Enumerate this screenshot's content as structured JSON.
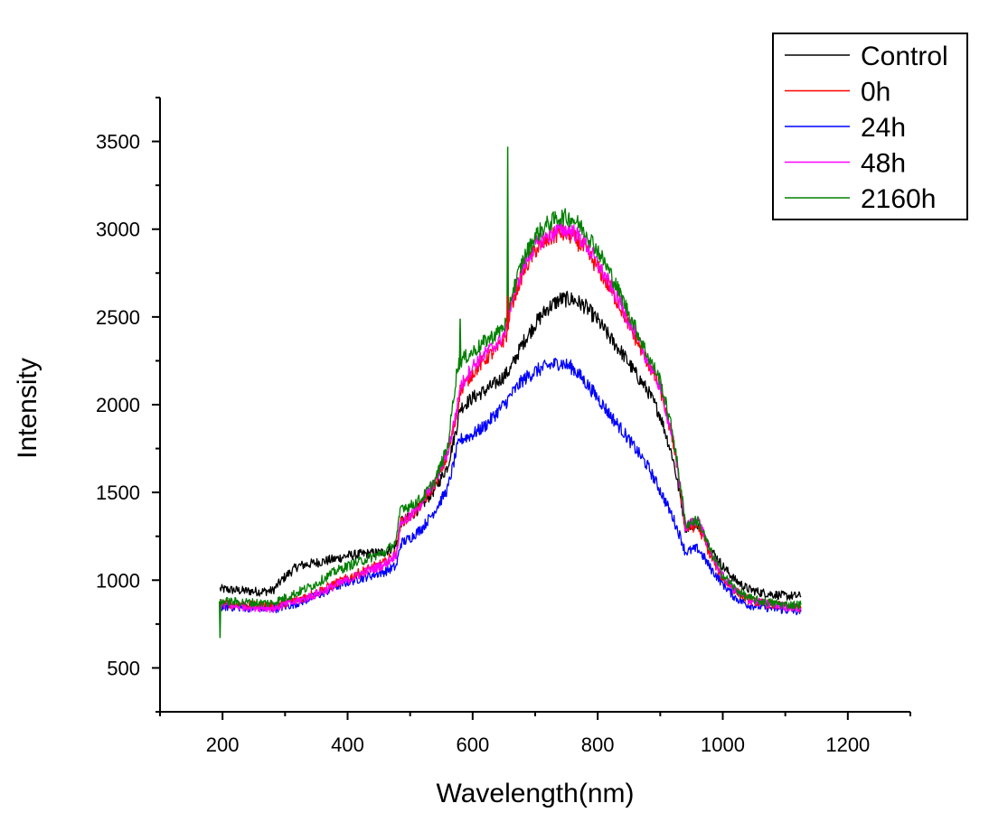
{
  "chart_data": {
    "type": "line",
    "title": "",
    "xlabel": "Wavelength(nm)",
    "ylabel": "Intensity",
    "xlim": [
      100,
      1300
    ],
    "ylim": [
      250,
      3750
    ],
    "x_ticks": [
      "200",
      "400",
      "600",
      "800",
      "1000",
      "1200"
    ],
    "y_ticks": [
      "500",
      "1000",
      "1500",
      "2000",
      "2500",
      "3000",
      "3500"
    ],
    "grid": false,
    "legend_position": "top-right",
    "x": [
      196,
      230,
      260,
      280,
      300,
      320,
      350,
      380,
      400,
      430,
      460,
      478,
      485,
      500,
      520,
      540,
      560,
      575,
      580,
      600,
      620,
      640,
      655,
      660,
      680,
      700,
      720,
      740,
      760,
      780,
      800,
      820,
      840,
      860,
      880,
      900,
      920,
      935,
      940,
      950,
      960,
      970,
      980,
      1000,
      1020,
      1040,
      1060,
      1080,
      1100,
      1125
    ],
    "series": [
      {
        "name": "Control",
        "color": "#000000",
        "values": [
          950,
          940,
          935,
          940,
          1020,
          1080,
          1100,
          1120,
          1140,
          1150,
          1160,
          1200,
          1330,
          1360,
          1430,
          1520,
          1650,
          1880,
          1980,
          2040,
          2080,
          2130,
          2180,
          2200,
          2350,
          2460,
          2550,
          2600,
          2600,
          2560,
          2480,
          2380,
          2290,
          2180,
          2080,
          1940,
          1700,
          1420,
          1300,
          1310,
          1320,
          1260,
          1180,
          1080,
          1000,
          950,
          930,
          920,
          910,
          910
        ]
      },
      {
        "name": "0h",
        "color": "#ff0000",
        "values": [
          870,
          860,
          855,
          850,
          870,
          890,
          930,
          980,
          1010,
          1060,
          1100,
          1160,
          1330,
          1360,
          1440,
          1550,
          1710,
          1950,
          2080,
          2180,
          2260,
          2320,
          2400,
          2550,
          2750,
          2880,
          2940,
          2980,
          2960,
          2880,
          2780,
          2660,
          2530,
          2380,
          2240,
          2090,
          1800,
          1450,
          1290,
          1300,
          1310,
          1230,
          1140,
          1010,
          940,
          890,
          870,
          860,
          850,
          840
        ]
      },
      {
        "name": "24h",
        "color": "#0000ff",
        "values": [
          850,
          845,
          840,
          835,
          850,
          870,
          910,
          960,
          990,
          1020,
          1050,
          1080,
          1210,
          1240,
          1300,
          1400,
          1520,
          1750,
          1800,
          1830,
          1880,
          1960,
          2020,
          2050,
          2140,
          2190,
          2220,
          2240,
          2210,
          2130,
          2040,
          1940,
          1850,
          1750,
          1650,
          1510,
          1360,
          1220,
          1160,
          1170,
          1180,
          1130,
          1070,
          980,
          900,
          860,
          850,
          840,
          830,
          820
        ]
      },
      {
        "name": "48h",
        "color": "#ff00ff",
        "values": [
          855,
          850,
          845,
          840,
          860,
          880,
          920,
          970,
          1000,
          1050,
          1090,
          1150,
          1330,
          1360,
          1450,
          1560,
          1730,
          1980,
          2100,
          2220,
          2290,
          2350,
          2430,
          2560,
          2780,
          2910,
          2960,
          3000,
          2990,
          2920,
          2800,
          2680,
          2550,
          2400,
          2250,
          2100,
          1810,
          1460,
          1300,
          1330,
          1350,
          1260,
          1160,
          1020,
          940,
          890,
          870,
          860,
          850,
          840
        ]
      },
      {
        "name": "2160h",
        "color": "#008000",
        "values": [
          880,
          875,
          870,
          870,
          900,
          930,
          980,
          1050,
          1080,
          1120,
          1160,
          1220,
          1420,
          1420,
          1470,
          1570,
          1760,
          2200,
          2250,
          2300,
          2360,
          2410,
          2470,
          2600,
          2820,
          2960,
          3030,
          3070,
          3060,
          2990,
          2880,
          2750,
          2600,
          2440,
          2280,
          2140,
          1840,
          1480,
          1320,
          1330,
          1340,
          1260,
          1170,
          1030,
          950,
          900,
          880,
          870,
          860,
          860
        ]
      }
    ],
    "spikes": [
      {
        "series": "2160h",
        "x": 196,
        "y": 670
      },
      {
        "series": "2160h",
        "x": 580,
        "y": 2490
      },
      {
        "series": "2160h",
        "x": 656,
        "y": 3470
      },
      {
        "series": "0h",
        "x": 656,
        "y": 2620
      }
    ]
  }
}
